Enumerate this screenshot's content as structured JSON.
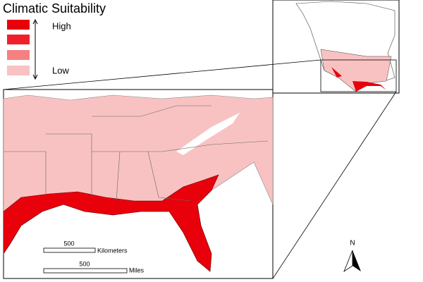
{
  "legend": {
    "title": "Climatic Suitability",
    "high_label": "High",
    "low_label": "Low",
    "colors": [
      "#e8000b",
      "#f0202a",
      "#f58080",
      "#f9c2c2"
    ]
  },
  "scale_bars": [
    {
      "value": "500",
      "unit": "Kilometers"
    },
    {
      "value": "500",
      "unit": "Miles"
    }
  ],
  "north_arrow": {
    "label": "N"
  }
}
